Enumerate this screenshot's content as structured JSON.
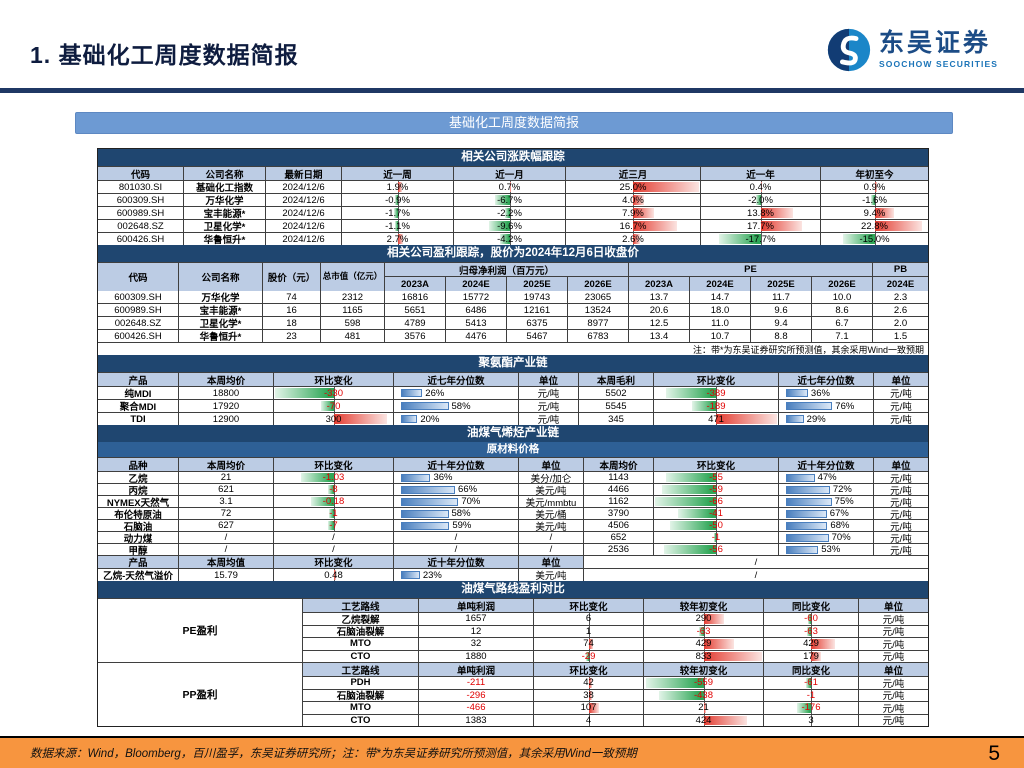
{
  "page": {
    "title": "1. 基础化工周度数据简报"
  },
  "logo": {
    "cn": "东吴证券",
    "en": "SOOCHOW SECURITIES"
  },
  "banner": "基础化工周度数据简报",
  "footer": {
    "text": "数据来源：Wind，Bloomberg，百川盈孚，东吴证券研究所；注：带*为东吴证券研究所预测值，其余采用Wind一致预期",
    "page": "5"
  },
  "colors": {
    "accent_navy": "#1f4670",
    "subheader_navy": "#2e6096",
    "header_blue": "#bccce4",
    "banner_blue": "#6d9ad3",
    "footer_orange": "#f7953f",
    "bar_up_red": "#e33c31",
    "bar_down_green": "#2fa757",
    "percentile_blue": "#4a7fbe"
  },
  "tables": {
    "t1": {
      "title": "相关公司涨跌幅跟踪",
      "columns": [
        "代码",
        "公司名称",
        "最新日期",
        "近一周",
        "近一月",
        "近三月",
        "近一年",
        "年初至今"
      ],
      "rows": [
        {
          "code": "801030.SI",
          "name": "基础化工指数",
          "date": "2024/12/6",
          "cells": [
            [
              "1.9%",
              0.08
            ],
            [
              "0.7%",
              0.03
            ],
            [
              "25.0%",
              1.0
            ],
            [
              "0.4%",
              0.02
            ],
            [
              "0.9%",
              0.04
            ]
          ]
        },
        {
          "code": "600309.SH",
          "name": "万华化学",
          "date": "2024/12/6",
          "cells": [
            [
              "-0.9%",
              -0.04
            ],
            [
              "-6.7%",
              -0.27
            ],
            [
              "4.0%",
              0.16
            ],
            [
              "-2.0%",
              -0.08
            ],
            [
              "-1.6%",
              -0.06
            ]
          ]
        },
        {
          "code": "600989.SH",
          "name": "宝丰能源*",
          "date": "2024/12/6",
          "cells": [
            [
              "-1.7%",
              -0.07
            ],
            [
              "-2.2%",
              -0.09
            ],
            [
              "7.9%",
              0.32
            ],
            [
              "13.8%",
              0.55
            ],
            [
              "9.4%",
              0.38
            ]
          ]
        },
        {
          "code": "002648.SZ",
          "name": "卫星化学*",
          "date": "2024/12/6",
          "cells": [
            [
              "-1.1%",
              -0.04
            ],
            [
              "-9.6%",
              -0.38
            ],
            [
              "16.7%",
              0.67
            ],
            [
              "17.7%",
              0.71
            ],
            [
              "22.8%",
              0.91
            ]
          ]
        },
        {
          "code": "600426.SH",
          "name": "华鲁恒升*",
          "date": "2024/12/6",
          "cells": [
            [
              "2.7%",
              0.11
            ],
            [
              "-4.2%",
              -0.17
            ],
            [
              "2.6%",
              0.1
            ],
            [
              "-17.7%",
              -0.71
            ],
            [
              "-15.0%",
              -0.6
            ]
          ]
        }
      ]
    },
    "t2": {
      "title": "相关公司盈利跟踪，股价为2024年12月6日收盘价",
      "col_left": [
        "代码",
        "公司名称",
        "股价（元）",
        "总市值（亿元）"
      ],
      "groups": [
        {
          "label": "归母净利润（百万元）",
          "cols": [
            "2023A",
            "2024E",
            "2025E",
            "2026E"
          ]
        },
        {
          "label": "PE",
          "cols": [
            "2023A",
            "2024E",
            "2025E",
            "2026E"
          ]
        },
        {
          "label": "PB",
          "cols": [
            "2024E"
          ]
        }
      ],
      "rows": [
        [
          "600309.SH",
          "万华化学",
          "74",
          "2312",
          "16816",
          "15772",
          "19743",
          "23065",
          "13.7",
          "14.7",
          "11.7",
          "10.0",
          "2.3"
        ],
        [
          "600989.SH",
          "宝丰能源*",
          "16",
          "1165",
          "5651",
          "6486",
          "12161",
          "13524",
          "20.6",
          "18.0",
          "9.6",
          "8.6",
          "2.6"
        ],
        [
          "002648.SZ",
          "卫星化学*",
          "18",
          "598",
          "4789",
          "5413",
          "6375",
          "8977",
          "12.5",
          "11.0",
          "9.4",
          "6.7",
          "2.0"
        ],
        [
          "600426.SH",
          "华鲁恒升*",
          "23",
          "481",
          "3576",
          "4476",
          "5467",
          "6783",
          "13.4",
          "10.7",
          "8.8",
          "7.1",
          "1.5"
        ]
      ],
      "note": "注：带*为东吴证券研究所预测值，其余采用Wind一致预期"
    },
    "t3": {
      "title": "聚氨酯产业链",
      "columns": [
        "产品",
        "本周均价",
        "环比变化",
        "近七年分位数",
        "单位",
        "本周毛利",
        "环比变化",
        "近七年分位数",
        "单位"
      ],
      "rows": [
        [
          "纯MDI",
          "18800",
          [
            "-330",
            -1.0
          ],
          26,
          "元/吨",
          "5502",
          [
            "-389",
            -0.83
          ],
          36,
          "元/吨"
        ],
        [
          "聚合MDI",
          "17920",
          [
            "-70",
            -0.21
          ],
          58,
          "元/吨",
          "5545",
          [
            "-189",
            -0.4
          ],
          76,
          "元/吨"
        ],
        [
          "TDI",
          "12900",
          [
            "300",
            0.91
          ],
          20,
          "元/吨",
          "345",
          [
            "471",
            1.0
          ],
          29,
          "元/吨"
        ]
      ]
    },
    "t4": {
      "title": "油煤气烯烃产业链",
      "subtitle": "原材料价格",
      "columns": [
        "品种",
        "本周均价",
        "环比变化",
        "近十年分位数",
        "单位",
        "本周均价",
        "环比变化",
        "近十年分位数",
        "单位"
      ],
      "rows": [
        [
          "乙烷",
          "21",
          [
            "-1.03",
            -0.55
          ],
          36,
          "美分/加仑",
          "1143",
          [
            "-55",
            -0.83
          ],
          47,
          "元/吨"
        ],
        [
          "丙烷",
          "621",
          [
            "-8",
            -0.1
          ],
          66,
          "美元/吨",
          "4466",
          [
            "-59",
            -0.89
          ],
          72,
          "元/吨"
        ],
        [
          "NYMEX天然气",
          "3.1",
          [
            "-0.18",
            -0.38
          ],
          70,
          "美元/mmbtu",
          "1162",
          [
            "-66",
            -1.0
          ],
          75,
          "元/吨"
        ],
        [
          "布伦特原油",
          "72",
          [
            "-1",
            -0.07
          ],
          58,
          "美元/桶",
          "3790",
          [
            "-41",
            -0.62
          ],
          67,
          "元/吨"
        ],
        [
          "石脑油",
          "627",
          [
            "-7",
            -0.09
          ],
          59,
          "美元/吨",
          "4506",
          [
            "-50",
            -0.76
          ],
          68,
          "元/吨"
        ],
        [
          "动力煤",
          "/",
          "/",
          "/",
          "/",
          "652",
          [
            "-1",
            -0.03
          ],
          70,
          "元/吨"
        ],
        [
          "甲醇",
          "/",
          "/",
          "/",
          "/",
          "2536",
          [
            "-56",
            -0.85
          ],
          53,
          "元/吨"
        ]
      ],
      "sub": {
        "columns": [
          "产品",
          "本周均值",
          "环比变化",
          "近十年分位数",
          "单位"
        ],
        "right": "/",
        "row": [
          "乙烷-天然气溢价",
          "15.79",
          [
            "0.48",
            0.05
          ],
          23,
          "美元/吨"
        ]
      }
    },
    "t5": {
      "title": "油煤气路线盈利对比",
      "columns": [
        "工艺路线",
        "单吨利润",
        "环比变化",
        "较年初变化",
        "同比变化",
        "单位"
      ],
      "sections": [
        {
          "label": "PE盈利",
          "rows": [
            [
              "乙烷裂解",
              "1657",
              [
                "6",
                0.01
              ],
              [
                "290",
                0.35
              ],
              [
                "-60",
                -0.07
              ],
              "元/吨"
            ],
            [
              "石脑油裂解",
              "12",
              [
                "1",
                0.01
              ],
              [
                "-63",
                -0.08
              ],
              [
                "-63",
                -0.08
              ],
              "元/吨"
            ],
            [
              "MTO",
              "32",
              [
                "74",
                0.09
              ],
              [
                "429",
                0.52
              ],
              [
                "429",
                0.52
              ],
              "元/吨"
            ],
            [
              "CTO",
              "1880",
              [
                "-29",
                -0.04
              ],
              [
                "833",
                1.0
              ],
              [
                "179",
                0.21
              ],
              "元/吨"
            ]
          ]
        },
        {
          "label": "PP盈利",
          "rows": [
            [
              "PDH",
              "-211",
              [
                "42",
                0.07
              ],
              [
                "-559",
                -0.98
              ],
              [
                "-61",
                -0.11
              ],
              "元/吨"
            ],
            [
              "石脑油裂解",
              "-296",
              [
                "38",
                0.07
              ],
              [
                "-438",
                -0.77
              ],
              [
                "-1",
                -0.01
              ],
              "元/吨"
            ],
            [
              "MTO",
              "-466",
              [
                "107",
                0.19
              ],
              [
                "21",
                0.04
              ],
              [
                "-176",
                -0.31
              ],
              "元/吨"
            ],
            [
              "CTO",
              "1383",
              [
                "4",
                0.01
              ],
              [
                "424",
                0.75
              ],
              [
                "3",
                0.01
              ],
              "元/吨"
            ]
          ]
        }
      ]
    }
  }
}
